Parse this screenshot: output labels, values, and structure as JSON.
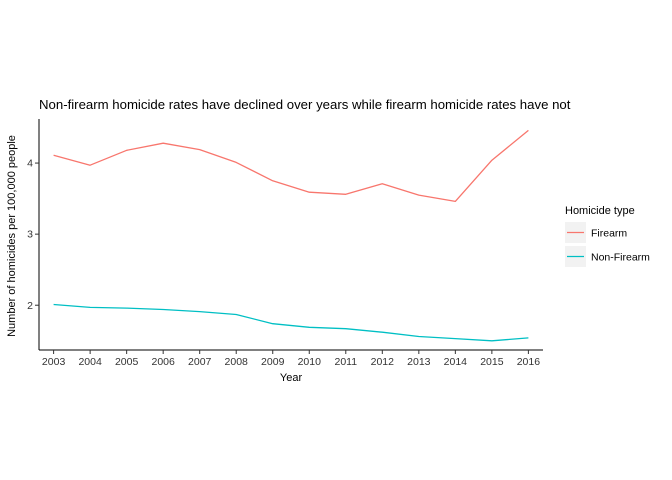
{
  "chart_data": {
    "type": "line",
    "title": "Non-firearm homicide rates have declined over years while firearm homicide rates have not",
    "xlabel": "Year",
    "ylabel": "Number of homicides per 100,000 people",
    "x": [
      2003,
      2004,
      2005,
      2006,
      2007,
      2008,
      2009,
      2010,
      2011,
      2012,
      2013,
      2014,
      2015,
      2016
    ],
    "xlim": [
      2002.6,
      2016.4
    ],
    "ylim": [
      1.37,
      4.62
    ],
    "yticks": [
      2,
      3,
      4
    ],
    "grid": false,
    "legend": {
      "title": "Homicide type",
      "position": "right"
    },
    "series": [
      {
        "name": "Firearm",
        "color": "#F8766D",
        "values": [
          4.11,
          3.97,
          4.18,
          4.28,
          4.19,
          4.01,
          3.75,
          3.59,
          3.56,
          3.71,
          3.55,
          3.46,
          4.04,
          4.46
        ]
      },
      {
        "name": "Non-Firearm",
        "color": "#00BFC4",
        "values": [
          2.01,
          1.97,
          1.96,
          1.94,
          1.91,
          1.87,
          1.74,
          1.69,
          1.67,
          1.62,
          1.56,
          1.53,
          1.5,
          1.54
        ]
      }
    ]
  }
}
